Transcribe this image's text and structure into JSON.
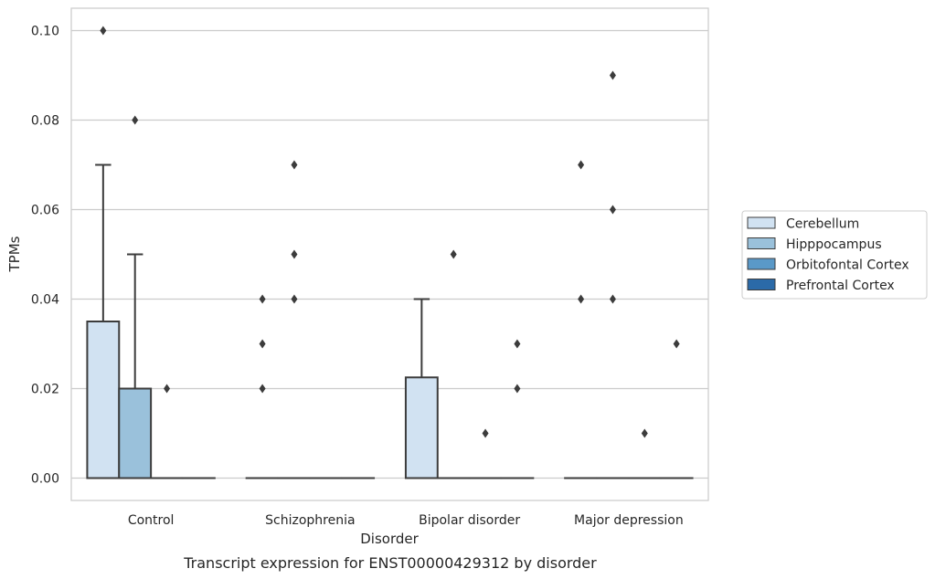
{
  "chart_data": {
    "type": "box",
    "title": "",
    "caption": "Transcript expression for ENST00000429312 by disorder",
    "xlabel": "Disorder",
    "ylabel": "TPMs",
    "ylim": [
      -0.005,
      0.105
    ],
    "yticks": [
      0.0,
      0.02,
      0.04,
      0.06,
      0.08,
      0.1
    ],
    "ytick_labels": [
      "0.00",
      "0.02",
      "0.04",
      "0.06",
      "0.08",
      "0.10"
    ],
    "grid": "horizontal",
    "legend_position": "right",
    "categories": [
      "Control",
      "Schizophrenia",
      "Bipolar disorder",
      "Major depression"
    ],
    "series": [
      {
        "name": "Cerebellum",
        "color": "#d1e2f2",
        "boxes": [
          {
            "q1": 0.0,
            "median": 0.0,
            "q3": 0.035,
            "whisker_low": 0.0,
            "whisker_high": 0.07,
            "outliers": [
              0.1
            ]
          },
          {
            "q1": 0.0,
            "median": 0.0,
            "q3": 0.0,
            "whisker_low": 0.0,
            "whisker_high": 0.0,
            "outliers": [
              0.02,
              0.03,
              0.04
            ]
          },
          {
            "q1": 0.0,
            "median": 0.0,
            "q3": 0.0225,
            "whisker_low": 0.0,
            "whisker_high": 0.04,
            "outliers": []
          },
          {
            "q1": 0.0,
            "median": 0.0,
            "q3": 0.0,
            "whisker_low": 0.0,
            "whisker_high": 0.0,
            "outliers": [
              0.04,
              0.07
            ]
          }
        ]
      },
      {
        "name": "Hipppocampus",
        "color": "#9ac1db",
        "boxes": [
          {
            "q1": 0.0,
            "median": 0.0,
            "q3": 0.02,
            "whisker_low": 0.0,
            "whisker_high": 0.05,
            "outliers": [
              0.08
            ]
          },
          {
            "q1": 0.0,
            "median": 0.0,
            "q3": 0.0,
            "whisker_low": 0.0,
            "whisker_high": 0.0,
            "outliers": [
              0.04,
              0.05,
              0.07
            ]
          },
          {
            "q1": 0.0,
            "median": 0.0,
            "q3": 0.0,
            "whisker_low": 0.0,
            "whisker_high": 0.0,
            "outliers": [
              0.05
            ]
          },
          {
            "q1": 0.0,
            "median": 0.0,
            "q3": 0.0,
            "whisker_low": 0.0,
            "whisker_high": 0.0,
            "outliers": [
              0.04,
              0.06,
              0.09
            ]
          }
        ]
      },
      {
        "name": "Orbitofontal Cortex",
        "color": "#5a99c8",
        "boxes": [
          {
            "q1": 0.0,
            "median": 0.0,
            "q3": 0.0,
            "whisker_low": 0.0,
            "whisker_high": 0.0,
            "outliers": [
              0.02
            ]
          },
          {
            "q1": 0.0,
            "median": 0.0,
            "q3": 0.0,
            "whisker_low": 0.0,
            "whisker_high": 0.0,
            "outliers": []
          },
          {
            "q1": 0.0,
            "median": 0.0,
            "q3": 0.0,
            "whisker_low": 0.0,
            "whisker_high": 0.0,
            "outliers": [
              0.01
            ]
          },
          {
            "q1": 0.0,
            "median": 0.0,
            "q3": 0.0,
            "whisker_low": 0.0,
            "whisker_high": 0.0,
            "outliers": [
              0.01
            ]
          }
        ]
      },
      {
        "name": "Prefrontal Cortex",
        "color": "#2b6aa8",
        "boxes": [
          {
            "q1": 0.0,
            "median": 0.0,
            "q3": 0.0,
            "whisker_low": 0.0,
            "whisker_high": 0.0,
            "outliers": []
          },
          {
            "q1": 0.0,
            "median": 0.0,
            "q3": 0.0,
            "whisker_low": 0.0,
            "whisker_high": 0.0,
            "outliers": []
          },
          {
            "q1": 0.0,
            "median": 0.0,
            "q3": 0.0,
            "whisker_low": 0.0,
            "whisker_high": 0.0,
            "outliers": [
              0.02,
              0.03
            ]
          },
          {
            "q1": 0.0,
            "median": 0.0,
            "q3": 0.0,
            "whisker_low": 0.0,
            "whisker_high": 0.0,
            "outliers": [
              0.03
            ]
          }
        ]
      }
    ]
  }
}
